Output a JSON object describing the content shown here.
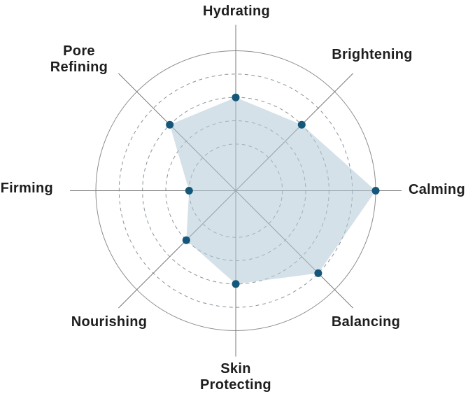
{
  "chart_data": {
    "type": "radar",
    "categories": [
      "Hydrating",
      "Brightening",
      "Calming",
      "Balancing",
      "Skin Protecting",
      "Nourishing",
      "Firming",
      "Pore Refining"
    ],
    "labels": [
      "Hydrating",
      "Brightening",
      "Calming",
      "Balancing",
      "Skin\nProtecting",
      "Nourishing",
      "Firming",
      "Pore\nRefining"
    ],
    "values": [
      4,
      4,
      6,
      5,
      4,
      3,
      2,
      4
    ],
    "max": 6,
    "ring_values": [
      2,
      3,
      4,
      5,
      6
    ],
    "start_angle_deg": -90,
    "direction": "clockwise",
    "grid": "circular; inner rings dashed, outer ring solid; 8 radial spokes extending past outer ring",
    "legend": "none",
    "colors": {
      "background": "#ffffff",
      "fill": "#b1c8d5",
      "fill_opacity": 0.55,
      "dot": "#15577a",
      "axis_line": "#7a7a7a",
      "ring_dashed": "#8a949a",
      "ring_solid": "#8d8d8d",
      "label_text": "#1e1e1e"
    }
  }
}
